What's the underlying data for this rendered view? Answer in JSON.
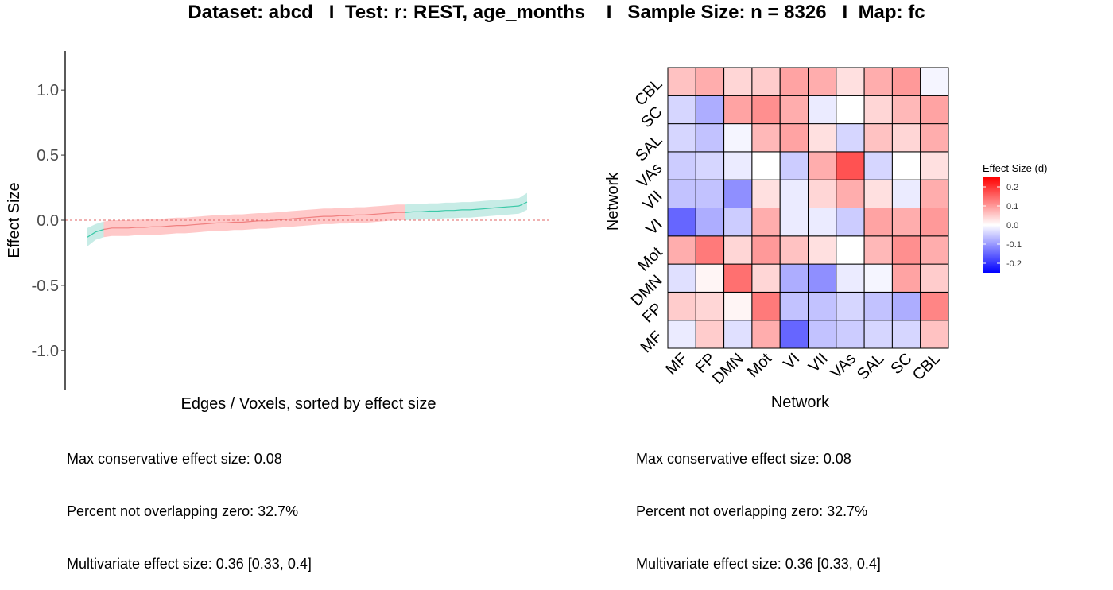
{
  "title": "Dataset: abcd   I  Test: r: REST, age_months    I   Sample Size: n = 8326   I  Map: fc",
  "colors": {
    "positive_band": "#ffc9c9",
    "positive_line": "#f08080",
    "negative_band": "#c7ece6",
    "negative_line": "#3cc9a8",
    "zero_line": "#e06666",
    "high": "#ff0000",
    "mid": "#ffffff",
    "low": "#0000ff",
    "cell_border": "#000000"
  },
  "left_stats": [
    "Max conservative effect size: 0.08",
    "Percent not overlapping zero: 32.7%",
    "Multivariate effect size: 0.36 [0.33, 0.4]"
  ],
  "right_stats": [
    "Max conservative effect size: 0.08",
    "Percent not overlapping zero: 32.7%",
    "Multivariate effect size: 0.36 [0.33, 0.4]"
  ],
  "chart_data": [
    {
      "type": "line",
      "xlabel": "Edges / Voxels, sorted by effect size",
      "ylabel": "Effect Size",
      "ylim": [
        -1.3,
        1.3
      ],
      "yticks": [
        1.0,
        0.5,
        0.0,
        -0.5,
        -1.0
      ],
      "ytick_labels": [
        "1.0",
        "0.5",
        "0.0",
        "-0.5",
        "-1.0"
      ],
      "zero_line": 0,
      "grid": false,
      "x": [
        1,
        2,
        3,
        4,
        5,
        6,
        7,
        8,
        9,
        10,
        11,
        12,
        13,
        14,
        15,
        16,
        17,
        18,
        19,
        20,
        21,
        22,
        23,
        24,
        25,
        26,
        27,
        28,
        29,
        30,
        31,
        32,
        33,
        34,
        35,
        36,
        37,
        38,
        39,
        40,
        41,
        42,
        43,
        44,
        45,
        46,
        47,
        48,
        49,
        50,
        51,
        52,
        53,
        54,
        55
      ],
      "y": [
        -0.13,
        -0.09,
        -0.07,
        -0.06,
        -0.06,
        -0.06,
        -0.055,
        -0.055,
        -0.05,
        -0.05,
        -0.045,
        -0.04,
        -0.04,
        -0.035,
        -0.03,
        -0.025,
        -0.02,
        -0.02,
        -0.015,
        -0.015,
        -0.01,
        -0.005,
        -0.005,
        0.0,
        0.005,
        0.01,
        0.015,
        0.02,
        0.025,
        0.03,
        0.03,
        0.035,
        0.035,
        0.04,
        0.04,
        0.045,
        0.05,
        0.055,
        0.06,
        0.06,
        0.065,
        0.065,
        0.07,
        0.07,
        0.075,
        0.075,
        0.08,
        0.08,
        0.085,
        0.09,
        0.095,
        0.1,
        0.105,
        0.11,
        0.14
      ],
      "lower": [
        -0.2,
        -0.15,
        -0.13,
        -0.12,
        -0.12,
        -0.12,
        -0.115,
        -0.115,
        -0.11,
        -0.11,
        -0.105,
        -0.1,
        -0.1,
        -0.095,
        -0.09,
        -0.085,
        -0.08,
        -0.08,
        -0.075,
        -0.075,
        -0.07,
        -0.065,
        -0.065,
        -0.06,
        -0.055,
        -0.05,
        -0.045,
        -0.04,
        -0.035,
        -0.03,
        -0.03,
        -0.025,
        -0.025,
        -0.02,
        -0.02,
        -0.015,
        -0.01,
        -0.005,
        0.0,
        0.0,
        0.005,
        0.005,
        0.01,
        0.01,
        0.015,
        0.015,
        0.02,
        0.02,
        0.025,
        0.03,
        0.035,
        0.04,
        0.045,
        0.05,
        0.08
      ],
      "upper": [
        -0.06,
        -0.03,
        -0.01,
        0.0,
        0.0,
        0.0,
        0.005,
        0.005,
        0.01,
        0.01,
        0.015,
        0.02,
        0.02,
        0.025,
        0.03,
        0.035,
        0.04,
        0.04,
        0.045,
        0.045,
        0.05,
        0.055,
        0.055,
        0.06,
        0.065,
        0.07,
        0.075,
        0.08,
        0.085,
        0.09,
        0.09,
        0.095,
        0.095,
        0.1,
        0.1,
        0.105,
        0.11,
        0.115,
        0.12,
        0.12,
        0.125,
        0.125,
        0.13,
        0.13,
        0.135,
        0.135,
        0.14,
        0.14,
        0.145,
        0.15,
        0.155,
        0.16,
        0.165,
        0.17,
        0.21
      ]
    },
    {
      "type": "heatmap",
      "xlabel": "Network",
      "ylabel": "Network",
      "x_categories": [
        "MF",
        "FP",
        "DMN",
        "Mot",
        "VI",
        "VII",
        "VAs",
        "SAL",
        "SC",
        "CBL"
      ],
      "y_categories": [
        "MF",
        "FP",
        "DMN",
        "Mot",
        "VI",
        "VII",
        "VAs",
        "SAL",
        "SC",
        "CBL"
      ],
      "legend_title": "Effect Size (d)",
      "legend_ticks": [
        0.2,
        0.1,
        0.0,
        -0.1,
        -0.2
      ],
      "legend_tick_labels": [
        "0.2",
        "0.1",
        "0.0",
        "-0.1",
        "-0.2"
      ],
      "color_range": [
        -0.25,
        0.25
      ],
      "legend_position": "right",
      "values": [
        [
          -0.02,
          0.05,
          -0.03,
          0.08,
          -0.15,
          -0.06,
          -0.05,
          -0.04,
          -0.04,
          0.06
        ],
        [
          0.05,
          0.04,
          0.01,
          0.13,
          -0.06,
          -0.06,
          -0.04,
          -0.06,
          -0.08,
          0.12
        ],
        [
          -0.03,
          0.01,
          0.14,
          0.04,
          -0.08,
          -0.11,
          -0.02,
          -0.01,
          0.09,
          0.05
        ],
        [
          0.08,
          0.13,
          0.04,
          0.1,
          0.06,
          0.03,
          0.0,
          0.07,
          0.11,
          0.08
        ],
        [
          -0.15,
          -0.08,
          -0.05,
          0.08,
          -0.02,
          -0.02,
          -0.05,
          0.09,
          0.08,
          0.1
        ],
        [
          -0.06,
          -0.06,
          -0.11,
          0.03,
          -0.02,
          0.04,
          0.08,
          0.03,
          -0.02,
          0.08
        ],
        [
          -0.05,
          -0.04,
          -0.02,
          0.0,
          -0.05,
          0.08,
          0.17,
          -0.04,
          0.0,
          0.03
        ],
        [
          -0.04,
          -0.06,
          -0.01,
          0.07,
          0.09,
          0.03,
          -0.04,
          0.06,
          0.04,
          0.08
        ],
        [
          -0.04,
          -0.08,
          0.09,
          0.11,
          0.08,
          -0.02,
          0.0,
          0.04,
          0.07,
          0.09
        ],
        [
          0.06,
          0.08,
          0.04,
          0.05,
          0.09,
          0.08,
          0.03,
          0.08,
          0.1,
          -0.01
        ]
      ]
    }
  ]
}
